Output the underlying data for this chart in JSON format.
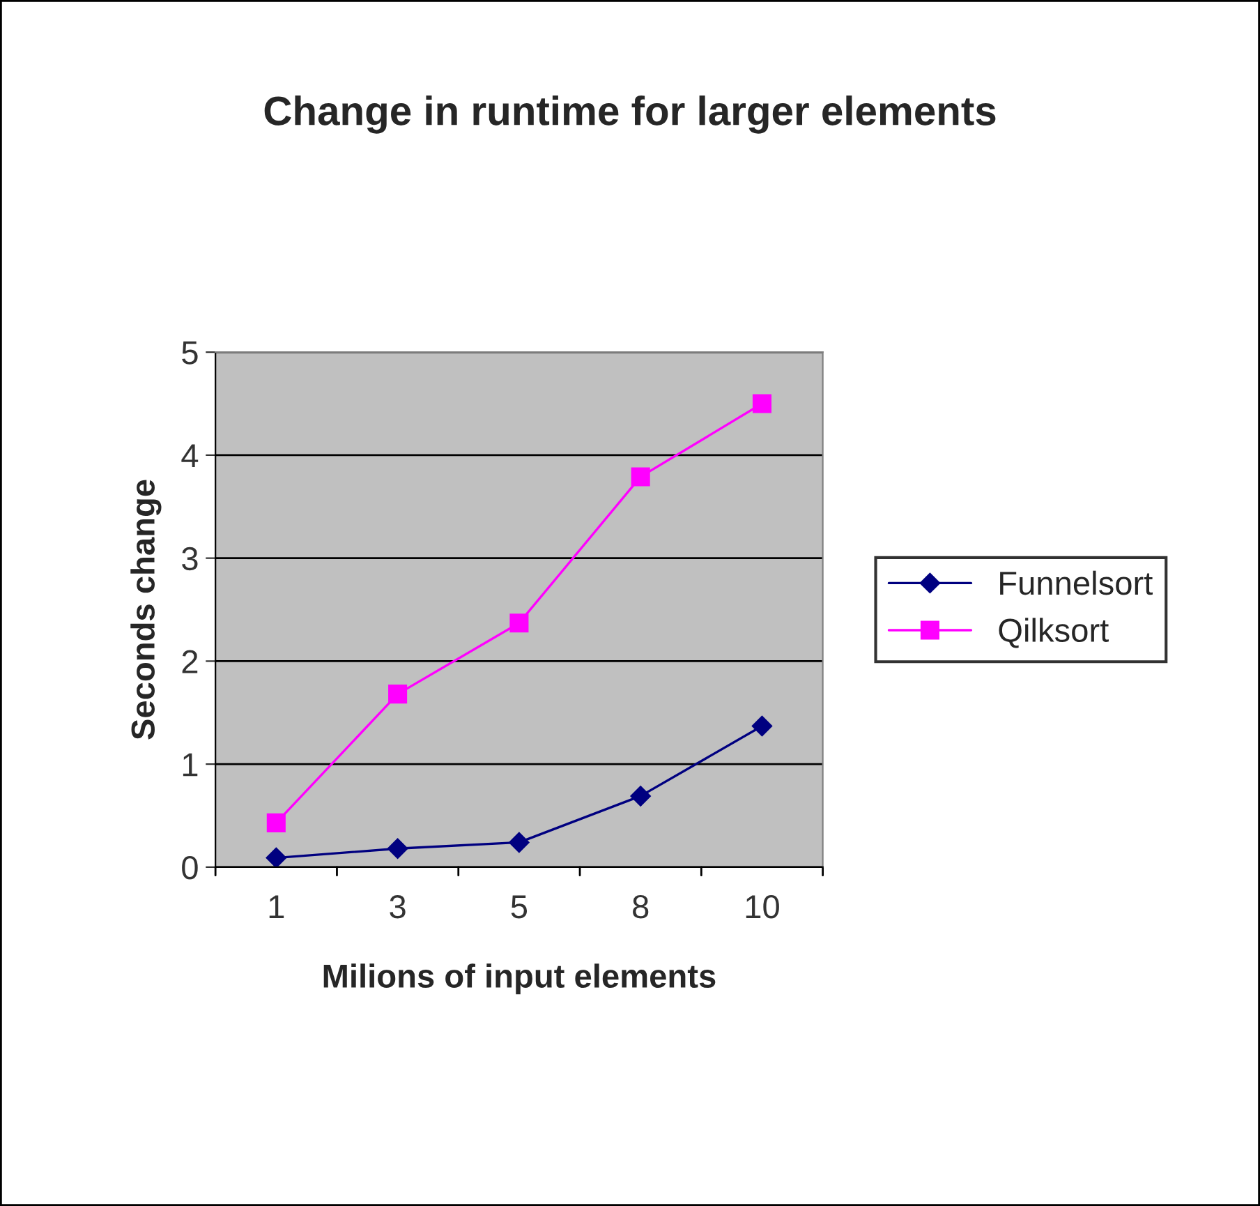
{
  "chart_data": {
    "type": "line",
    "title": "Change in runtime for larger elements",
    "xlabel": "Milions of input elements",
    "ylabel": "Seconds change",
    "categories": [
      "1",
      "3",
      "5",
      "8",
      "10"
    ],
    "series": [
      {
        "name": "Funnelsort",
        "color": "#000080",
        "marker": "diamond",
        "values": [
          0.09,
          0.18,
          0.24,
          0.69,
          1.37
        ]
      },
      {
        "name": "Qilksort",
        "color": "#ff00ff",
        "marker": "square",
        "values": [
          0.43,
          1.68,
          2.37,
          3.79,
          4.5
        ]
      }
    ],
    "ylim": [
      0,
      5
    ],
    "yticks": [
      0,
      1,
      2,
      3,
      4,
      5
    ],
    "grid": "y",
    "legend": "right",
    "line_style": "solid"
  }
}
